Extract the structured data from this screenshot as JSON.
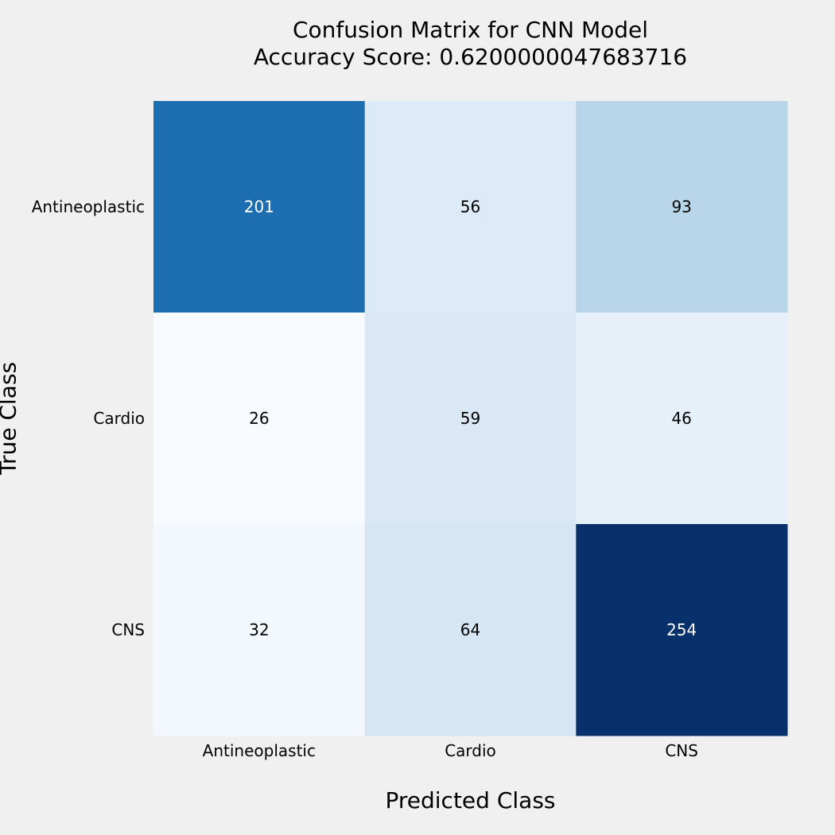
{
  "chart_data": {
    "type": "heatmap",
    "title": "Confusion Matrix for CNN Model",
    "subtitle": "Accuracy Score: 0.6200000047683716",
    "xlabel": "Predicted Class",
    "ylabel": "True Class",
    "x_categories": [
      "Antineoplastic",
      "Cardio",
      "CNS"
    ],
    "y_categories": [
      "Antineoplastic",
      "Cardio",
      "CNS"
    ],
    "values": [
      [
        201,
        56,
        93
      ],
      [
        26,
        59,
        46
      ],
      [
        32,
        64,
        254
      ]
    ],
    "colormap": "Blues",
    "colorbar": false,
    "annotations": true
  }
}
